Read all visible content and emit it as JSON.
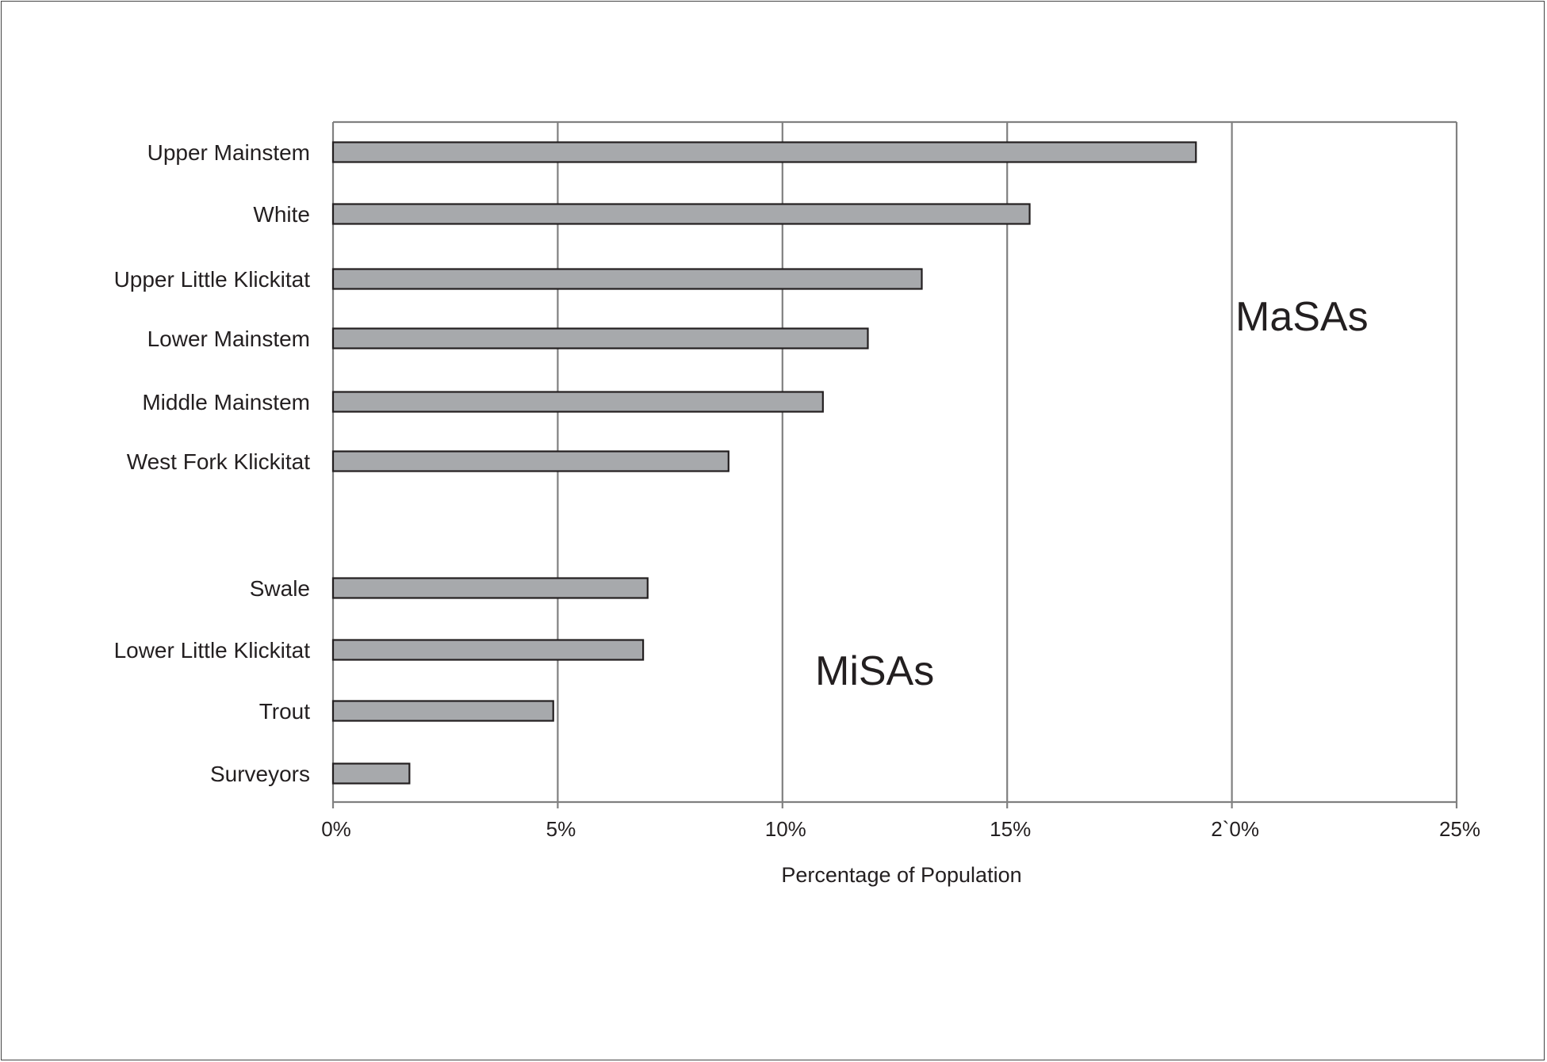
{
  "chart_data": {
    "type": "bar",
    "orientation": "horizontal",
    "categories": [
      "Upper Mainstem",
      "White",
      "Upper Little Klickitat",
      "Lower Mainstem",
      "Middle Mainstem",
      "West Fork Klickitat",
      "Swale",
      "Lower Little Klickitat",
      "Trout",
      "Surveyors"
    ],
    "values": [
      19.2,
      15.5,
      13.1,
      11.9,
      10.9,
      8.8,
      7.0,
      6.9,
      4.9,
      1.7
    ],
    "groups": [
      {
        "label": "MaSAs",
        "categories": [
          "Upper Mainstem",
          "White",
          "Upper Little Klickitat",
          "Lower Mainstem",
          "Middle Mainstem",
          "West Fork Klickitat"
        ]
      },
      {
        "label": "MiSAs",
        "categories": [
          "Swale",
          "Lower Little Klickitat",
          "Trout",
          "Surveyors"
        ]
      }
    ],
    "x_ticks": [
      0,
      5,
      10,
      15,
      20,
      25
    ],
    "x_tick_labels": [
      "0%",
      "5%",
      "10%",
      "15%",
      "2`0%",
      "25%"
    ],
    "xlabel": "Percentage of Population",
    "ylabel": "",
    "xlim": [
      0,
      25
    ],
    "grid": "vertical",
    "bar_color": "#a7a9ac",
    "bar_edge_color": "#231f20",
    "grid_color": "#808080"
  }
}
